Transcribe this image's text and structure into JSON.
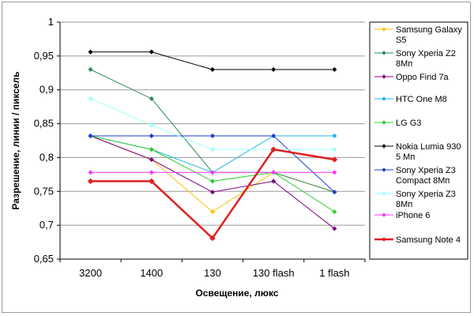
{
  "chart_data": {
    "type": "line",
    "categories": [
      "3200",
      "1400",
      "130",
      "130 flash",
      "1 flash"
    ],
    "xlabel": "Освещение, люкс",
    "ylabel": "Разрешение, линии / пиксель",
    "ylim": [
      0.65,
      1.0
    ],
    "yticks": [
      "0,65",
      "0,7",
      "0,75",
      "0,8",
      "0,85",
      "0,9",
      "0,95",
      "1"
    ],
    "yticks_values": [
      0.65,
      0.7,
      0.75,
      0.8,
      0.85,
      0.9,
      0.95,
      1.0
    ],
    "grid": "horizontal",
    "legend_position": "right",
    "series": [
      {
        "name": "Samsung Galaxy S5",
        "legend_lines": [
          "Samsung Galaxy",
          "S5"
        ],
        "color": "#FFC000",
        "width": 1,
        "values": [
          0.832,
          0.797,
          0.72,
          0.778,
          0.749
        ]
      },
      {
        "name": "Sony Xperia Z2 8Мп",
        "legend_lines": [
          "Sony Xperia Z2",
          "8Мп"
        ],
        "color": "#2E8B57",
        "width": 1,
        "values": [
          0.93,
          0.887,
          0.778,
          0.778,
          0.749
        ]
      },
      {
        "name": "Oppo Find 7a",
        "legend_lines": [
          "Oppo Find 7a"
        ],
        "color": "#800080",
        "width": 1,
        "values": [
          0.832,
          0.797,
          0.749,
          0.765,
          0.695
        ]
      },
      {
        "name": "HTC One M8",
        "legend_lines": [
          "HTC One M8"
        ],
        "color": "#1EB4E6",
        "width": 1,
        "values": [
          0.832,
          0.812,
          0.778,
          0.832,
          0.832
        ]
      },
      {
        "name": "LG G3",
        "legend_lines": [
          "LG G3"
        ],
        "color": "#33CC33",
        "width": 1,
        "values": [
          0.832,
          0.812,
          0.765,
          0.778,
          0.72
        ]
      },
      {
        "name": "Nokia Lumia 930 5 Мп",
        "legend_lines": [
          "Nokia Lumia 930",
          "5 Мп"
        ],
        "color": "#000000",
        "width": 1,
        "values": [
          0.956,
          0.956,
          0.93,
          0.93,
          0.93
        ]
      },
      {
        "name": "Sony Xperia Z3 Compact 8Мп",
        "legend_lines": [
          "Sony Xperia Z3",
          "Compact 8Мп"
        ],
        "color": "#1F3FCC",
        "width": 1,
        "values": [
          0.832,
          0.832,
          0.832,
          0.832,
          0.749
        ]
      },
      {
        "name": "Sony Xperia Z3 8Мп",
        "legend_lines": [
          "Sony Xperia Z3",
          "8Мп"
        ],
        "color": "#9FFFFF",
        "width": 1,
        "values": [
          0.887,
          0.848,
          0.812,
          0.812,
          0.812
        ]
      },
      {
        "name": "iPhone 6",
        "legend_lines": [
          "iPhone 6"
        ],
        "color": "#FF33FF",
        "width": 1,
        "values": [
          0.778,
          0.778,
          0.778,
          0.778,
          0.778
        ]
      },
      {
        "name": "Samsung Note 4",
        "legend_lines": [
          "Samsung Note 4"
        ],
        "color": "#E02020",
        "width": 2.5,
        "values": [
          0.765,
          0.765,
          0.681,
          0.812,
          0.797
        ]
      }
    ]
  }
}
